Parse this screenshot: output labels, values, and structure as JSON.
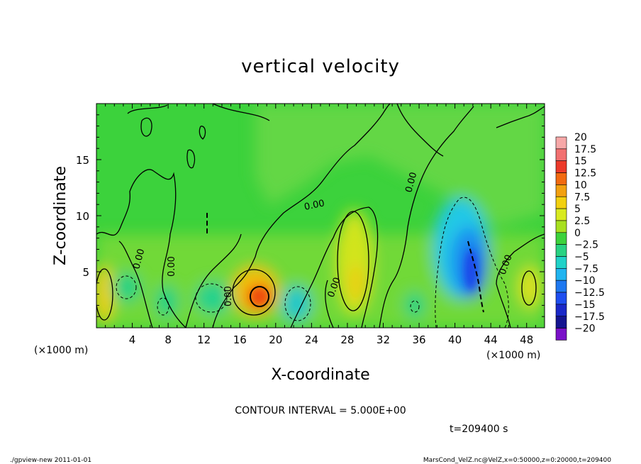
{
  "chart_data": {
    "type": "heatmap",
    "title": "vertical velocity",
    "xlabel": "X-coordinate",
    "ylabel": "Z-coordinate",
    "x_unit_left": "(×1000 m)",
    "x_unit_right": "(×1000 m)",
    "xlim": [
      0,
      50
    ],
    "ylim": [
      0,
      20
    ],
    "x_ticks": [
      "4",
      "8",
      "12",
      "16",
      "20",
      "24",
      "28",
      "32",
      "36",
      "40",
      "44",
      "48"
    ],
    "x_tick_values": [
      4,
      8,
      12,
      16,
      20,
      24,
      28,
      32,
      36,
      40,
      44,
      48
    ],
    "y_ticks": [
      "5",
      "10",
      "15"
    ],
    "y_tick_values": [
      5,
      10,
      15
    ],
    "colorbar": {
      "levels": [
        20,
        17.5,
        15,
        12.5,
        10,
        7.5,
        5,
        2.5,
        0,
        -2.5,
        -5,
        -7.5,
        -10,
        -12.5,
        -15,
        -17.5,
        -20
      ],
      "labels": [
        "20",
        "17.5",
        "15",
        "12.5",
        "10",
        "7.5",
        "5",
        "2.5",
        "0",
        "−2.5",
        "−5",
        "−7.5",
        "−10",
        "−12.5",
        "−15",
        "−17.5",
        "−20"
      ],
      "colors": [
        "#f7a8a8",
        "#f27070",
        "#ec3a2a",
        "#f26a10",
        "#f2a010",
        "#f2d010",
        "#d8ea20",
        "#a8e020",
        "#3cd23c",
        "#28d282",
        "#20d2c8",
        "#20b4f0",
        "#1e78f0",
        "#1e4ef0",
        "#1a28c8",
        "#141490",
        "#7a10c8"
      ]
    },
    "contour_labels": [
      "0.00",
      "0.00",
      "0.00",
      "0.00",
      "0.00",
      "0.00",
      "0.00"
    ],
    "features": [
      {
        "kind": "updraft",
        "x": 18,
        "z": 2.8,
        "value": 12.5
      },
      {
        "kind": "updraft",
        "x": 29,
        "z": 7,
        "value": 7.5
      },
      {
        "kind": "updraft",
        "x": 0.8,
        "z": 3,
        "value": 7.5
      },
      {
        "kind": "updraft",
        "x": 48.5,
        "z": 3.5,
        "value": 5
      },
      {
        "kind": "downdraft",
        "x": 41.5,
        "z": 6,
        "value": -12.5
      },
      {
        "kind": "downdraft",
        "x": 22,
        "z": 2.5,
        "value": -7.5
      },
      {
        "kind": "downdraft",
        "x": 13,
        "z": 3,
        "value": -5
      }
    ]
  },
  "contour_interval_text": "CONTOUR INTERVAL = 5.000E+00",
  "time_text": "t=209400 s",
  "footer_left": "./gpview-new  2011-01-01",
  "footer_right": "MarsCond_VelZ.nc@VelZ,x=0:50000,z=0:20000,t=209400"
}
